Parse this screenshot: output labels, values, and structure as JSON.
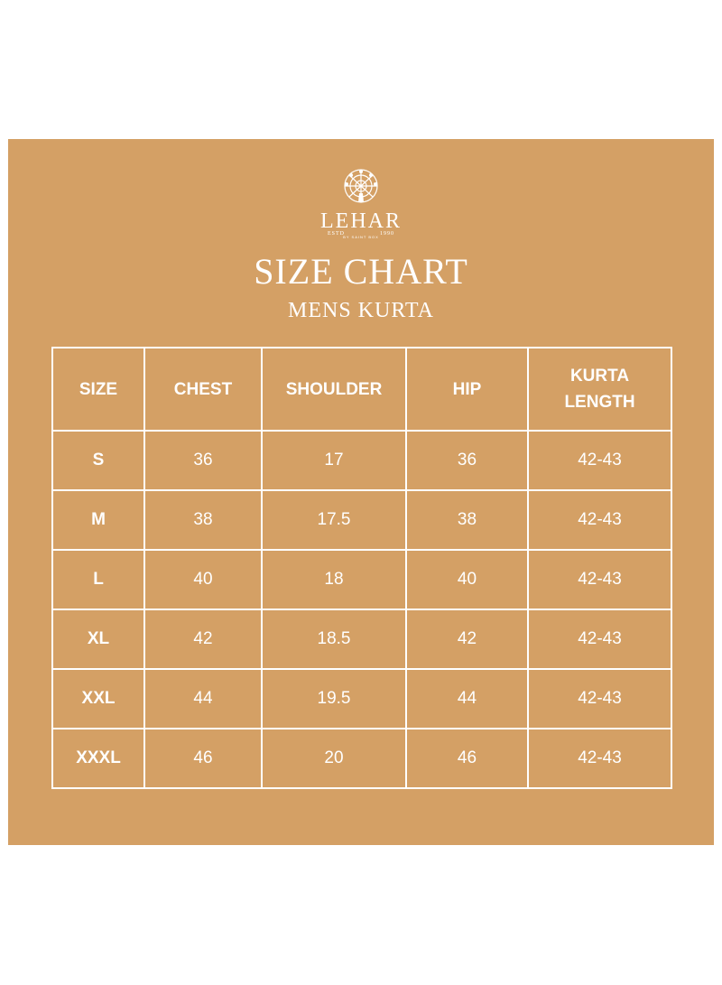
{
  "brand": {
    "name": "LEHAR",
    "estd_left": "ESTD",
    "estd_right": "1990",
    "tagline": "BY SAINT BOX"
  },
  "title": "SIZE CHART",
  "subtitle": "MENS KURTA",
  "colors": {
    "background": "#D4A065",
    "text": "#FFFFFF",
    "grid": "#FFFFFF"
  },
  "table": {
    "headers": [
      "SIZE",
      "CHEST",
      "SHOULDER",
      "HIP",
      "KURTA LENGTH"
    ],
    "rows": [
      [
        "S",
        "36",
        "17",
        "36",
        "42-43"
      ],
      [
        "M",
        "38",
        "17.5",
        "38",
        "42-43"
      ],
      [
        "L",
        "40",
        "18",
        "40",
        "42-43"
      ],
      [
        "XL",
        "42",
        "18.5",
        "42",
        "42-43"
      ],
      [
        "XXL",
        "44",
        "19.5",
        "44",
        "42-43"
      ],
      [
        "XXXL",
        "46",
        "20",
        "46",
        "42-43"
      ]
    ]
  }
}
